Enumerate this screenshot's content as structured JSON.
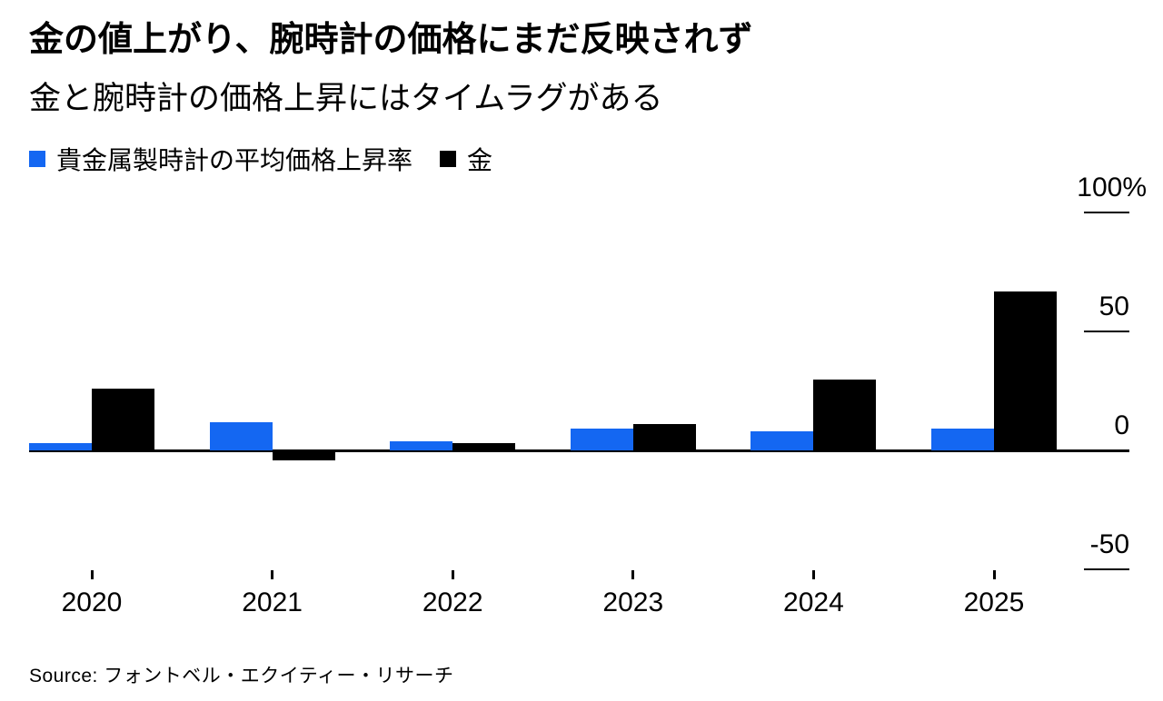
{
  "header": {
    "title": "金の値上がり、腕時計の価格にまだ反映されず",
    "subtitle": "金と腕時計の価格上昇にはタイムラグがある"
  },
  "legend": {
    "items": [
      {
        "label": "貴金属製時計の平均価格上昇率",
        "color": "#1467f2"
      },
      {
        "label": "金",
        "color": "#000000"
      }
    ]
  },
  "chart_data": {
    "type": "bar",
    "title": "金の値上がり、腕時計の価格にまだ反映されず",
    "subtitle": "金と腕時計の価格上昇にはタイムラグがある",
    "categories": [
      "2020",
      "2021",
      "2022",
      "2023",
      "2024",
      "2025"
    ],
    "series": [
      {
        "name": "貴金属製時計の平均価格上昇率",
        "color": "#1467f2",
        "values": [
          3,
          12,
          4,
          9,
          8,
          9
        ]
      },
      {
        "name": "金",
        "color": "#000000",
        "values": [
          26,
          -4,
          3,
          11,
          30,
          67
        ]
      }
    ],
    "unit": "%",
    "ylim": [
      -60,
      105
    ],
    "yticks": [
      100,
      50,
      0,
      -50
    ],
    "ytick_labels": [
      "100%",
      "50",
      "0",
      "-50"
    ],
    "xlabel": "",
    "ylabel": "",
    "grid": false,
    "legend_position": "top-left",
    "y_axis_side": "right"
  },
  "source": {
    "label": "Source: フォントベル・エクイティー・リサーチ"
  }
}
